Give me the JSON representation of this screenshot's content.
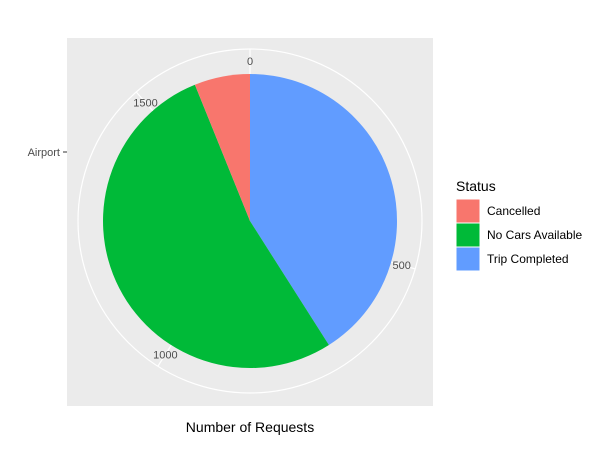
{
  "chart_data": {
    "type": "pie",
    "title": "",
    "xlabel": "Number of Requests",
    "ylabel": "",
    "category_label": "Airport",
    "theta_ticks": [
      0,
      500,
      1000,
      1500
    ],
    "theta_range": [
      0,
      1695
    ],
    "legend": {
      "title": "Status",
      "position": "right"
    },
    "grid": true,
    "background_color": "#ebebeb",
    "slices": [
      {
        "label": "Trip Completed",
        "value": 1327,
        "color": "#619cff"
      },
      {
        "label": "No Cars Available",
        "value": 1713,
        "color": "#00ba38"
      },
      {
        "label": "Cancelled",
        "value": 198,
        "color": "#f8766d"
      }
    ],
    "legend_items": [
      {
        "label": "Cancelled",
        "color": "#f8766d"
      },
      {
        "label": "No Cars Available",
        "color": "#00ba38"
      },
      {
        "label": "Trip Completed",
        "color": "#619cff"
      }
    ]
  }
}
